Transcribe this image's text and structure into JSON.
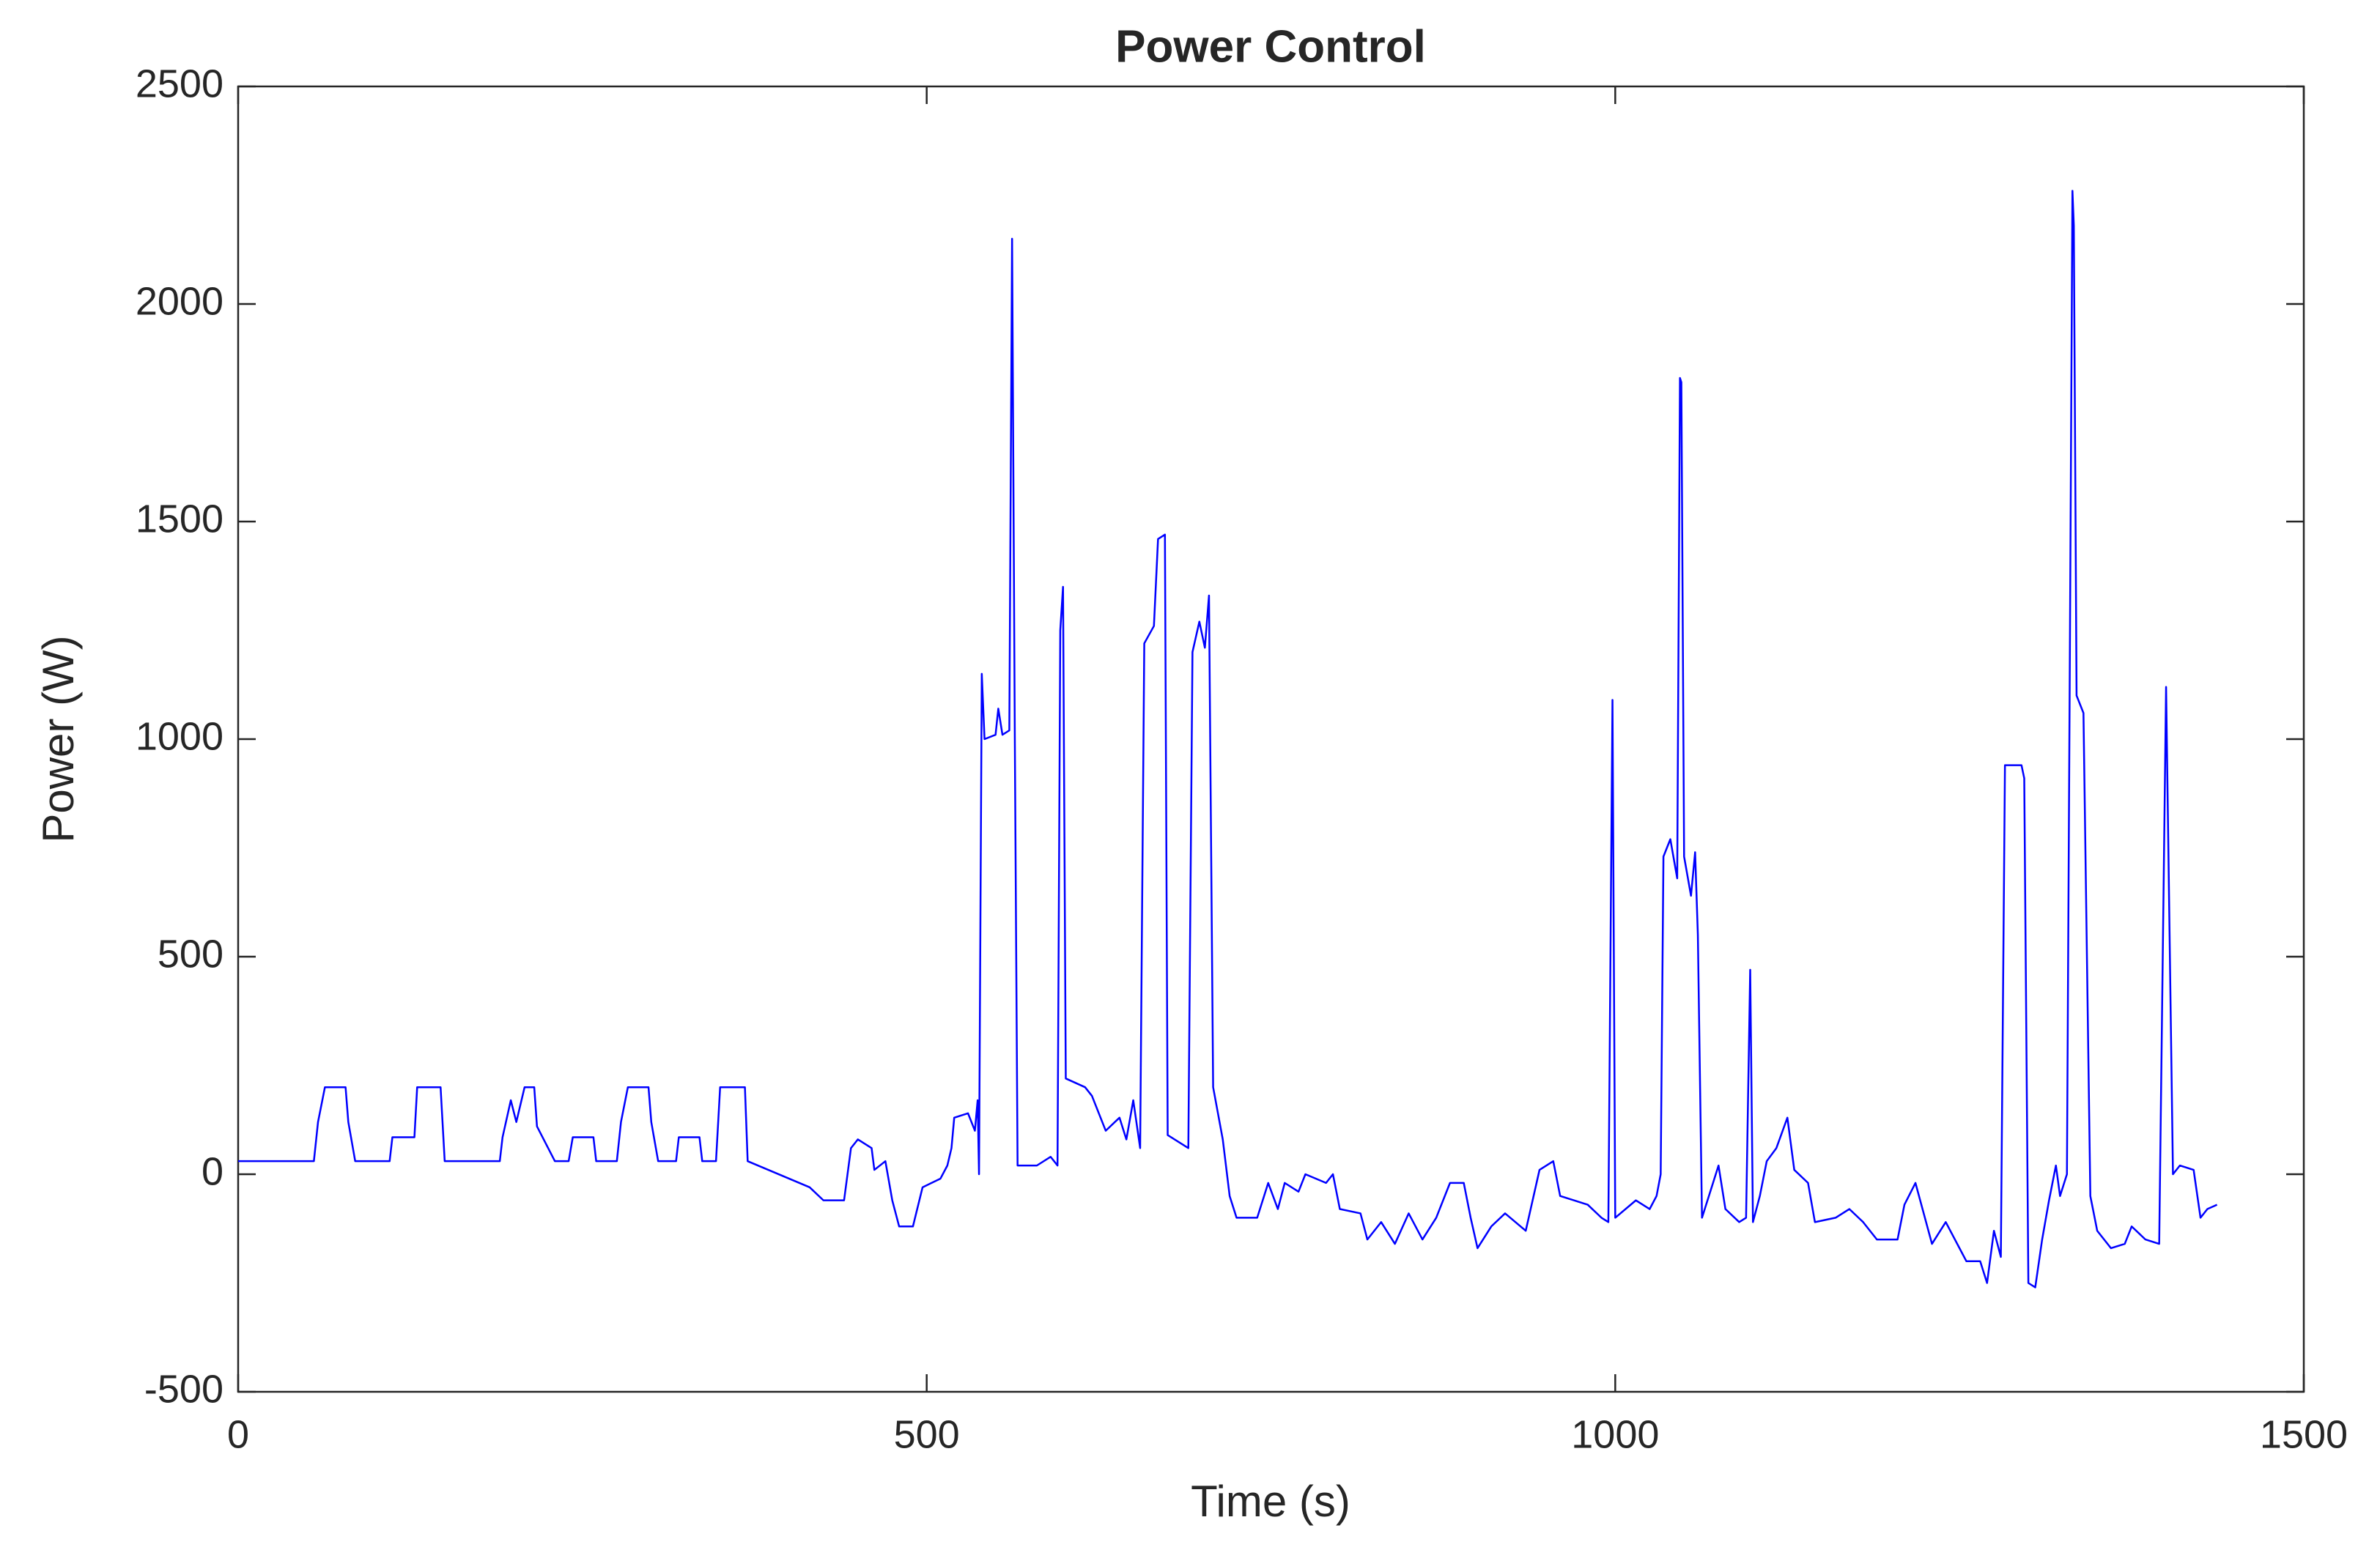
{
  "chart_data": {
    "type": "line",
    "title": "Power Control",
    "xlabel": "Time (s)",
    "ylabel": "Power (W)",
    "xlim": [
      0,
      1500
    ],
    "ylim": [
      -500,
      2500
    ],
    "xticks": [
      0,
      500,
      1000,
      1500
    ],
    "yticks": [
      -500,
      0,
      500,
      1000,
      1500,
      2000,
      2500
    ],
    "grid": false,
    "x": [
      0,
      55,
      58,
      63,
      78,
      80,
      85,
      110,
      112,
      128,
      130,
      147,
      150,
      190,
      192,
      198,
      202,
      208,
      215,
      217,
      230,
      240,
      243,
      258,
      260,
      275,
      278,
      283,
      298,
      300,
      305,
      318,
      320,
      335,
      337,
      347,
      350,
      368,
      370,
      385,
      400,
      415,
      425,
      440,
      445,
      450,
      460,
      462,
      470,
      475,
      480,
      490,
      497,
      510,
      515,
      518,
      520,
      530,
      535,
      537,
      538,
      540,
      542,
      550,
      552,
      555,
      560,
      562,
      564,
      566,
      580,
      590,
      595,
      597,
      599,
      601,
      615,
      620,
      630,
      640,
      645,
      650,
      655,
      658,
      665,
      668,
      673,
      675,
      690,
      693,
      698,
      702,
      705,
      708,
      715,
      720,
      725,
      740,
      745,
      748,
      755,
      760,
      770,
      775,
      790,
      795,
      800,
      815,
      820,
      830,
      840,
      850,
      860,
      870,
      880,
      890,
      895,
      900,
      910,
      920,
      935,
      945,
      955,
      960,
      980,
      990,
      995,
      998,
      1000,
      1015,
      1025,
      1030,
      1033,
      1035,
      1040,
      1045,
      1047,
      1048,
      1050,
      1055,
      1058,
      1060,
      1063,
      1068,
      1075,
      1080,
      1090,
      1095,
      1098,
      1100,
      1105,
      1110,
      1117,
      1125,
      1130,
      1140,
      1145,
      1160,
      1170,
      1180,
      1190,
      1205,
      1210,
      1218,
      1230,
      1240,
      1250,
      1255,
      1265,
      1270,
      1275,
      1280,
      1283,
      1295,
      1297,
      1300,
      1305,
      1310,
      1315,
      1320,
      1323,
      1328,
      1330,
      1332,
      1333,
      1335,
      1340,
      1345,
      1350,
      1360,
      1370,
      1375,
      1385,
      1395,
      1400,
      1405,
      1410,
      1420,
      1425,
      1430,
      1437
    ],
    "series": [
      {
        "name": "Power",
        "color": "#0000ff",
        "values": [
          30,
          30,
          120,
          200,
          200,
          120,
          30,
          30,
          85,
          85,
          200,
          200,
          30,
          30,
          85,
          170,
          120,
          200,
          200,
          110,
          30,
          30,
          85,
          85,
          30,
          30,
          120,
          200,
          200,
          120,
          30,
          30,
          85,
          85,
          30,
          30,
          200,
          200,
          30,
          10,
          -10,
          -30,
          -60,
          -60,
          60,
          80,
          60,
          10,
          30,
          -60,
          -120,
          -120,
          -30,
          -10,
          20,
          60,
          130,
          140,
          100,
          170,
          0,
          1150,
          1000,
          1010,
          1070,
          1010,
          1020,
          2150,
          1000,
          20,
          20,
          40,
          20,
          1250,
          1350,
          220,
          200,
          180,
          100,
          130,
          80,
          170,
          60,
          1220,
          1260,
          1460,
          1470,
          90,
          60,
          1200,
          1270,
          1210,
          1330,
          200,
          80,
          -50,
          -100,
          -100,
          -50,
          -20,
          -80,
          -20,
          -40,
          0,
          -20,
          0,
          -80,
          -90,
          -150,
          -110,
          -160,
          -90,
          -150,
          -100,
          -20,
          -20,
          -100,
          -170,
          -120,
          -90,
          -130,
          10,
          30,
          -50,
          -70,
          -100,
          -110,
          1090,
          -100,
          -60,
          -80,
          -50,
          0,
          730,
          770,
          680,
          1830,
          1820,
          730,
          640,
          740,
          550,
          -100,
          -50,
          20,
          -80,
          -110,
          -100,
          470,
          -110,
          -50,
          30,
          60,
          130,
          10,
          -20,
          -110,
          -100,
          -80,
          -110,
          -150,
          -150,
          -70,
          -20,
          -160,
          -110,
          -170,
          -200,
          -200,
          -250,
          -130,
          -190,
          940,
          940,
          910,
          -250,
          -260,
          -150,
          -60,
          20,
          -50,
          0,
          1120,
          2260,
          2180,
          1100,
          1060,
          -50,
          -130,
          -170,
          -160,
          -120,
          -150,
          -160,
          1120,
          0,
          20,
          10,
          -100,
          -80,
          -70
        ]
      }
    ]
  }
}
